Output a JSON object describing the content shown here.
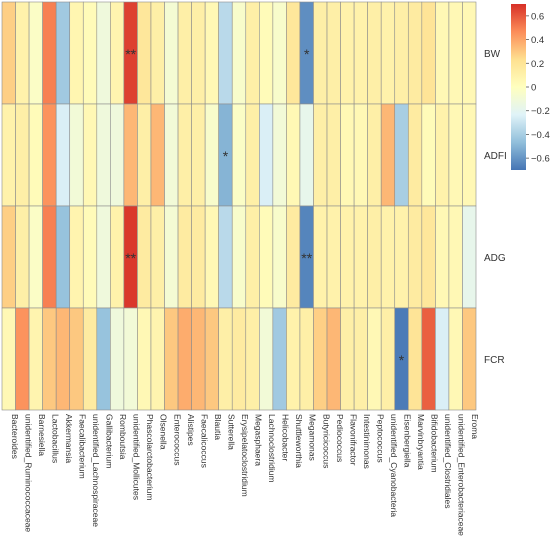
{
  "chart_data": {
    "type": "heatmap",
    "title": "",
    "xlabel": "",
    "ylabel": "",
    "rows": [
      "BW",
      "ADFI",
      "ADG",
      "FCR"
    ],
    "columns": [
      "Bacteroides",
      "unidentified_Ruminococcaceae",
      "Barnesiella",
      "Lactobacillus",
      "Akkermansia",
      "Faecalibacterium",
      "unidentified_Lachnospiraceae",
      "Gallibacterium",
      "Romboutsia",
      "unidentified_Mollicutes",
      "Phascolarctobacterium",
      "Olsenella",
      "Enterococcus",
      "Alistipes",
      "Faecalicoccus",
      "Blautia",
      "Sutterella",
      "Erysipelatoclostridium",
      "Megasphaera",
      "Lachnoclostridium",
      "Helicobacter",
      "Shuttleworthia",
      "Megamonas",
      "Butyricicoccus",
      "Pediococcus",
      "Flavonifractor",
      "Intestinimonas",
      "Peptococcus",
      "unidentified_Cyanobacteria",
      "Eisenbergiella",
      "Marvinbryantia",
      "Bifidobacterium",
      "unidentified_Clostridiales",
      "unidentified_Enterobacteriaceae",
      "Eroma"
    ],
    "values": [
      [
        0.28,
        0.1,
        -0.03,
        0.5,
        -0.42,
        0.07,
        0.03,
        -0.12,
        0.08,
        0.66,
        0.18,
        0.12,
        -0.08,
        0.12,
        0.12,
        0.05,
        -0.35,
        -0.05,
        0.12,
        0.03,
        -0.05,
        0.18,
        -0.62,
        0.12,
        0.12,
        0.1,
        0.1,
        0.12,
        0.1,
        0.12,
        0.15,
        0.2,
        0.05,
        0.05,
        0.05
      ],
      [
        0.1,
        0.12,
        0.03,
        0.45,
        -0.25,
        -0.1,
        0.05,
        -0.12,
        -0.12,
        0.35,
        0.12,
        0.35,
        -0.1,
        0.12,
        0.12,
        -0.05,
        -0.5,
        -0.03,
        0.12,
        -0.25,
        -0.1,
        0.05,
        -0.18,
        0.12,
        0.12,
        0.05,
        0.05,
        0.12,
        0.35,
        -0.4,
        0.15,
        0.03,
        0.1,
        0.05,
        0.05
      ],
      [
        0.28,
        0.12,
        -0.03,
        0.5,
        -0.45,
        0.08,
        0.03,
        -0.12,
        0.1,
        0.68,
        0.15,
        0.12,
        -0.08,
        0.15,
        0.15,
        0.05,
        -0.35,
        -0.05,
        0.12,
        0.03,
        -0.05,
        0.15,
        -0.65,
        0.1,
        0.1,
        0.1,
        0.1,
        0.12,
        0.1,
        0.1,
        0.15,
        0.18,
        0.05,
        0.05,
        -0.18
      ],
      [
        0.05,
        0.45,
        0.08,
        0.3,
        0.35,
        0.3,
        0.15,
        -0.45,
        -0.12,
        -0.1,
        0.05,
        0.08,
        0.3,
        0.38,
        0.35,
        0.3,
        0.12,
        0.15,
        0.12,
        -0.1,
        -0.42,
        0.1,
        0.12,
        0.28,
        0.35,
        0.12,
        0.12,
        0.05,
        0.12,
        -0.68,
        0.2,
        0.58,
        -0.25,
        0.05,
        0.3
      ]
    ],
    "significance": [
      [
        "",
        "",
        "",
        "",
        "",
        "",
        "",
        "",
        "",
        "**",
        "",
        "",
        "",
        "",
        "",
        "",
        "",
        "",
        "",
        "",
        "",
        "",
        "*",
        "",
        "",
        "",
        "",
        "",
        "",
        "",
        "",
        "",
        "",
        "",
        ""
      ],
      [
        "",
        "",
        "",
        "",
        "",
        "",
        "",
        "",
        "",
        "",
        "",
        "",
        "",
        "",
        "",
        "",
        "*",
        "",
        "",
        "",
        "",
        "",
        "",
        "",
        "",
        "",
        "",
        "",
        "",
        "",
        "",
        "",
        "",
        "",
        ""
      ],
      [
        "",
        "",
        "",
        "",
        "",
        "",
        "",
        "",
        "",
        "**",
        "",
        "",
        "",
        "",
        "",
        "",
        "",
        "",
        "",
        "",
        "",
        "",
        "**",
        "",
        "",
        "",
        "",
        "",
        "",
        "",
        "",
        "",
        "",
        "",
        ""
      ],
      [
        "",
        "",
        "",
        "",
        "",
        "",
        "",
        "",
        "",
        "",
        "",
        "",
        "",
        "",
        "",
        "",
        "",
        "",
        "",
        "",
        "",
        "",
        "",
        "",
        "",
        "",
        "",
        "",
        "",
        "*",
        "",
        "",
        "",
        "",
        ""
      ]
    ],
    "zlim": [
      -0.7,
      0.7
    ],
    "colorbar": {
      "ticks": [
        0.6,
        0.4,
        0.2,
        0,
        -0.2,
        -0.4,
        -0.6
      ],
      "tick_labels": [
        "0.6",
        "0.4",
        "0.2",
        "0",
        "−0.2",
        "−0.4",
        "−0.6"
      ],
      "colors": [
        "#4575b4",
        "#91bfdb",
        "#e0f3f8",
        "#ffffbf",
        "#fee090",
        "#fc8d59",
        "#d73027"
      ]
    },
    "grid": true,
    "legend": "right"
  }
}
